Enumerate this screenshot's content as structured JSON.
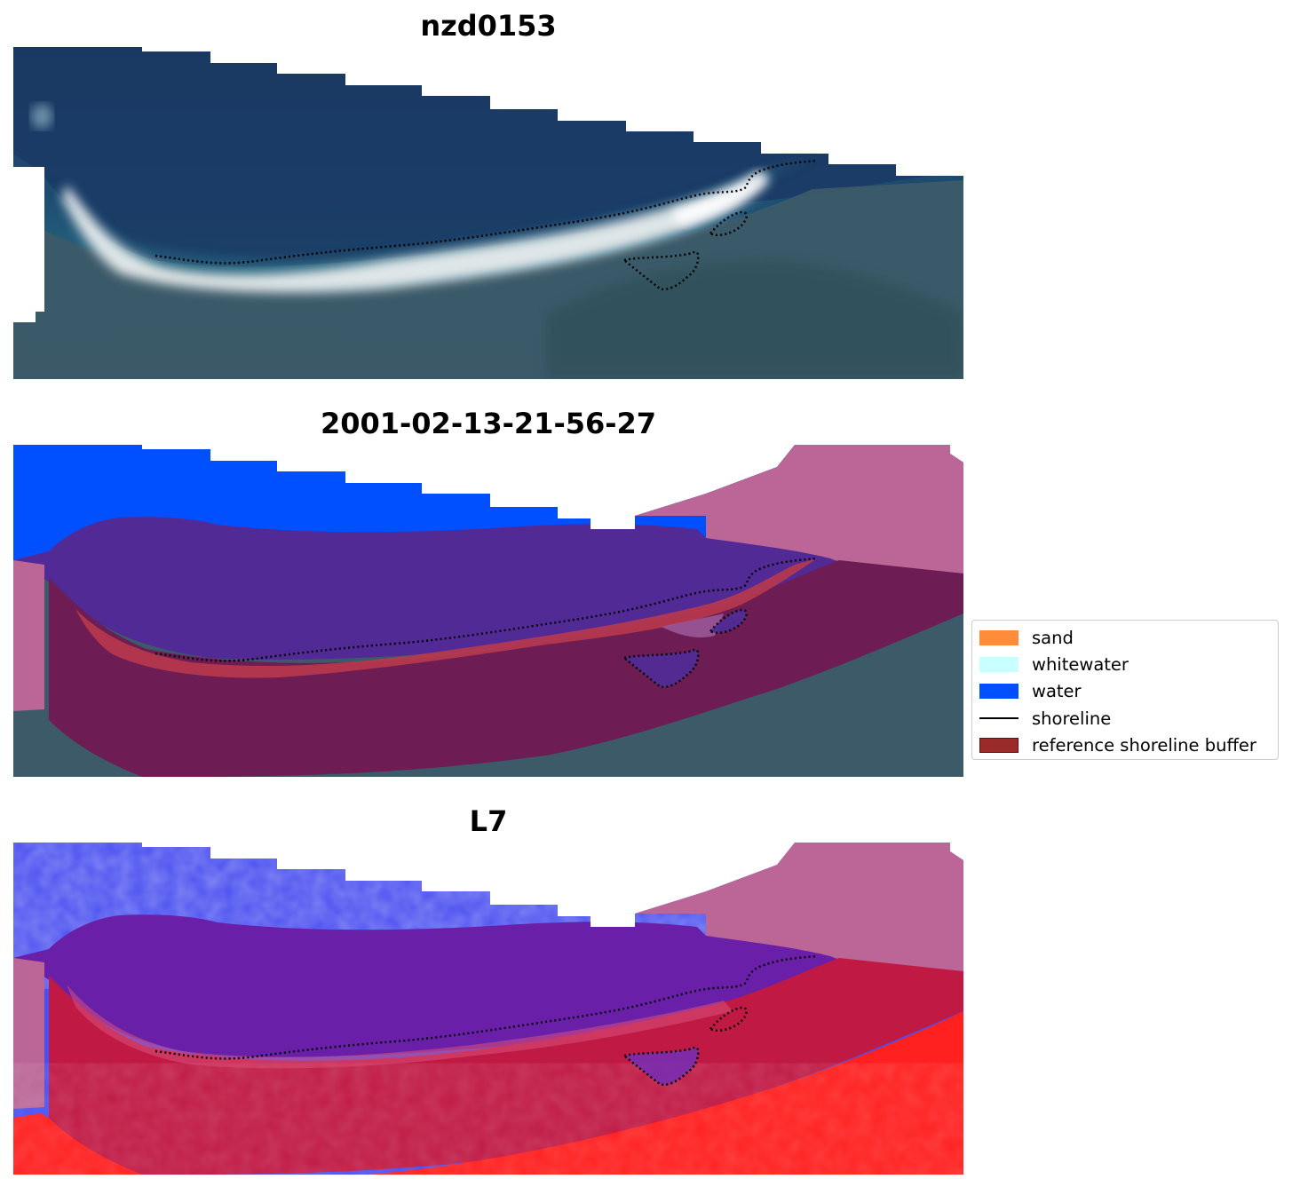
{
  "titles": {
    "panel1": "nzd0153",
    "panel2": "2001-02-13-21-56-27",
    "panel3": "L7"
  },
  "legend": {
    "items": [
      {
        "label": "sand",
        "color": "#ff8c38",
        "kind": "patch",
        "icon": "sand-swatch"
      },
      {
        "label": "whitewater",
        "color": "#c8ffff",
        "kind": "patch",
        "icon": "whitewater-swatch"
      },
      {
        "label": "water",
        "color": "#0050ff",
        "kind": "patch",
        "icon": "water-swatch"
      },
      {
        "label": "shoreline",
        "color": "#000000",
        "kind": "line",
        "icon": "shoreline-line"
      },
      {
        "label": "reference shoreline buffer",
        "color": "#9b2a2a",
        "kind": "patch",
        "icon": "buffer-swatch"
      }
    ]
  },
  "colors": {
    "ocean_deep": "#1a3a64",
    "ocean_mid": "#23607a",
    "surf": "#eef2f2",
    "land": "#3c5a68",
    "class_water": "#0050ff",
    "class_buffer": "#bb6696",
    "class_overlap": "#522a96",
    "class_land_buffer": "#6d1c54",
    "class_sand_edge": "#b83a4c",
    "l7_water": "#4a50f0",
    "l7_buffer": "#c01a44",
    "l7_land": "#ff2020"
  }
}
